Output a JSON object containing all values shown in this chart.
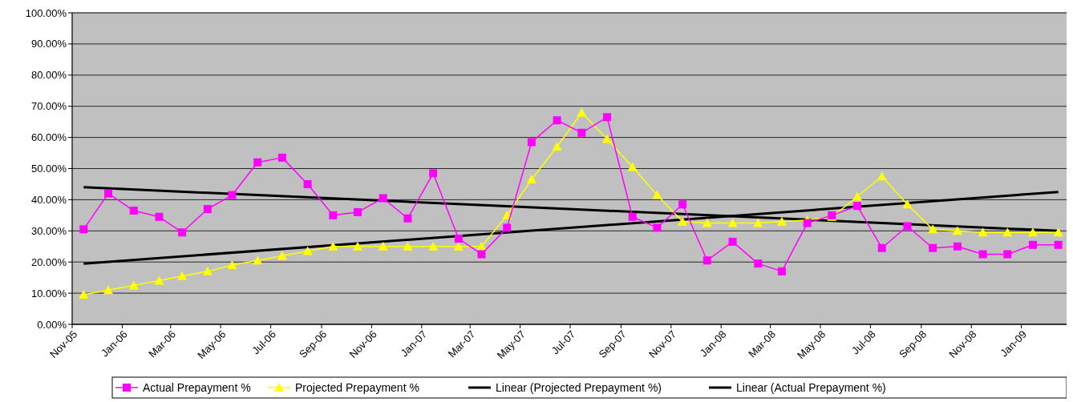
{
  "chart_data": {
    "type": "line",
    "x": [
      "2005-11-15",
      "2005-12-15",
      "2006-01-15",
      "2006-02-15",
      "2006-03-15",
      "2006-04-15",
      "2006-05-15",
      "2006-06-15",
      "2006-07-15",
      "2006-08-15",
      "2006-09-15",
      "2006-10-15",
      "2006-11-15",
      "2006-12-15",
      "2007-01-15",
      "2007-02-15",
      "2007-03-15",
      "2007-04-15",
      "2007-05-15",
      "2007-06-15",
      "2007-07-15",
      "2007-08-15",
      "2007-09-15",
      "2007-10-15",
      "2007-11-15",
      "2007-12-15",
      "2008-01-15",
      "2008-02-15",
      "2008-03-15",
      "2008-04-15",
      "2008-05-15",
      "2008-06-15",
      "2008-07-15",
      "2008-08-15",
      "2008-09-15",
      "2008-10-15",
      "2008-11-15",
      "2008-12-15",
      "2009-01-15",
      "2009-02-15"
    ],
    "series": [
      {
        "name": "Actual Prepayment %",
        "color": "#ff00ff",
        "marker": "square",
        "values": [
          30.5,
          42,
          36.5,
          34.5,
          29.5,
          37,
          41.5,
          52,
          53.5,
          45,
          35,
          36,
          40.5,
          34,
          48.5,
          27.5,
          22.5,
          31,
          58.5,
          65.5,
          61.5,
          66.5,
          34.5,
          31,
          38.5,
          20.5,
          26.5,
          19.5,
          17,
          32.5,
          35,
          38,
          24.5,
          31.5,
          24.5,
          25,
          22.5,
          22.5,
          25.5,
          25.5
        ]
      },
      {
        "name": "Projected Prepayment %",
        "color": "#ffff00",
        "marker": "triangle",
        "values": [
          9.5,
          11,
          12.5,
          14,
          15.5,
          17,
          19,
          20.5,
          22,
          23.5,
          25,
          25,
          25,
          25,
          25,
          25,
          25,
          35,
          46.5,
          57,
          68,
          59.5,
          50.5,
          41.5,
          33,
          32.5,
          32.5,
          32.5,
          33,
          33.5,
          34.5,
          41,
          47.5,
          38.5,
          30.5,
          30,
          29.5,
          29.5,
          29.5,
          29.5
        ]
      },
      {
        "name": "Linear (Projected Prepayment %)",
        "color": "#000000",
        "marker": "none",
        "x": [
          "2005-11-15",
          "2009-02-15"
        ],
        "values": [
          19.5,
          42.5
        ]
      },
      {
        "name": "Linear (Actual Prepayment %)",
        "color": "#000000",
        "marker": "none",
        "x": [
          "2005-11-15",
          "2009-02-15"
        ],
        "values": [
          44,
          30
        ]
      }
    ],
    "xlim": [
      "2005-11-01",
      "2009-03-01"
    ],
    "xticks": [
      {
        "value": "2005-11-01",
        "label": "Nov-05"
      },
      {
        "value": "2006-01-01",
        "label": "Jan-06"
      },
      {
        "value": "2006-03-01",
        "label": "Mar-06"
      },
      {
        "value": "2006-05-01",
        "label": "May-06"
      },
      {
        "value": "2006-07-01",
        "label": "Jul-06"
      },
      {
        "value": "2006-09-01",
        "label": "Sep-06"
      },
      {
        "value": "2006-11-01",
        "label": "Nov-06"
      },
      {
        "value": "2007-01-01",
        "label": "Jan-07"
      },
      {
        "value": "2007-03-01",
        "label": "Mar-07"
      },
      {
        "value": "2007-05-01",
        "label": "May-07"
      },
      {
        "value": "2007-07-01",
        "label": "Jul-07"
      },
      {
        "value": "2007-09-01",
        "label": "Sep-07"
      },
      {
        "value": "2007-11-01",
        "label": "Nov-07"
      },
      {
        "value": "2008-01-01",
        "label": "Jan-08"
      },
      {
        "value": "2008-03-01",
        "label": "Mar-08"
      },
      {
        "value": "2008-05-01",
        "label": "May-08"
      },
      {
        "value": "2008-07-01",
        "label": "Jul-08"
      },
      {
        "value": "2008-09-01",
        "label": "Sep-08"
      },
      {
        "value": "2008-11-01",
        "label": "Nov-08"
      },
      {
        "value": "2009-01-01",
        "label": "Jan-09"
      }
    ],
    "ylim": [
      0,
      100
    ],
    "yticks": [
      {
        "value": 0,
        "label": "0.00%"
      },
      {
        "value": 10,
        "label": "10.00%"
      },
      {
        "value": 20,
        "label": "20.00%"
      },
      {
        "value": 30,
        "label": "30.00%"
      },
      {
        "value": 40,
        "label": "40.00%"
      },
      {
        "value": 50,
        "label": "50.00%"
      },
      {
        "value": 60,
        "label": "60.00%"
      },
      {
        "value": 70,
        "label": "70.00%"
      },
      {
        "value": 80,
        "label": "80.00%"
      },
      {
        "value": 90,
        "label": "90.00%"
      },
      {
        "value": 100,
        "label": "100.00%"
      }
    ],
    "grid": "y",
    "legend": "bottom",
    "line_style": "solid"
  }
}
